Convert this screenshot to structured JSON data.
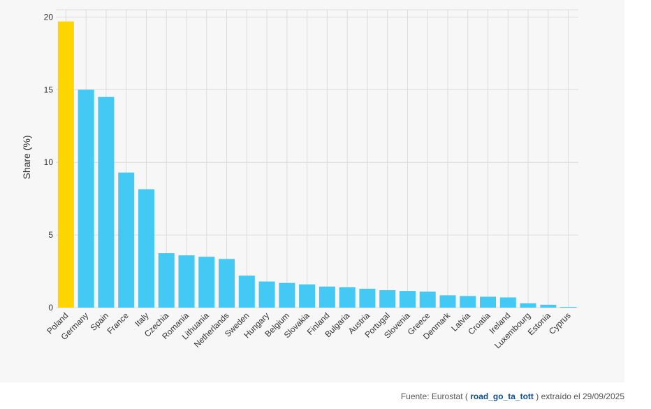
{
  "colors": {
    "highlight": "#ffd500",
    "bar": "#43c9f3",
    "grid": "#dcdcdc",
    "axis_text": "#333333"
  },
  "source": {
    "prefix": "Fuente: Eurostat ( ",
    "dataset": "road_go_ta_tott",
    "suffix": " ) extraído el 29/09/2025"
  },
  "chart_data": {
    "type": "bar",
    "title": "",
    "xlabel": "",
    "ylabel": "Share (%)",
    "ylim": [
      0,
      20.5
    ],
    "yticks": [
      0,
      5,
      10,
      15,
      20
    ],
    "grid": true,
    "categories": [
      "Poland",
      "Germany",
      "Spain",
      "France",
      "Italy",
      "Czechia",
      "Romania",
      "Lithuania",
      "Netherlands",
      "Sweden",
      "Hungary",
      "Belgium",
      "Slovakia",
      "Finland",
      "Bulgaria",
      "Austria",
      "Portugal",
      "Slovenia",
      "Greece",
      "Denmark",
      "Latvia",
      "Croatia",
      "Ireland",
      "Luxembourg",
      "Estonia",
      "Cyprus"
    ],
    "values": [
      19.7,
      15.0,
      14.5,
      9.3,
      8.15,
      3.75,
      3.6,
      3.5,
      3.35,
      2.2,
      1.8,
      1.7,
      1.6,
      1.45,
      1.4,
      1.3,
      1.2,
      1.15,
      1.1,
      0.85,
      0.8,
      0.75,
      0.7,
      0.3,
      0.2,
      0.05
    ],
    "highlight_index": 0
  }
}
